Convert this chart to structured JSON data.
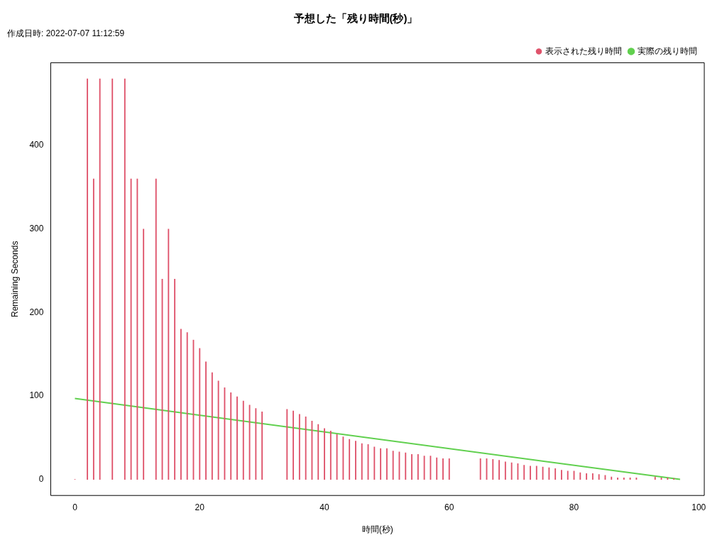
{
  "chart_data": {
    "type": "bar",
    "title": "予想した「残り時間(秒)」",
    "subtitle": "作成日時: 2022-07-07 11:12:59",
    "xlabel": "時間(秒)",
    "ylabel": "Remaining Seconds",
    "xlim": [
      -3.88,
      100.88
    ],
    "xticks": [
      0,
      20,
      40,
      60,
      80,
      100
    ],
    "ylim": [
      -19.2,
      499.2
    ],
    "yticks": [
      0,
      100,
      200,
      300,
      400
    ],
    "legend": "top right",
    "series": [
      {
        "name": "表示された残り時間",
        "color": "#df536b",
        "x": [
          0,
          2,
          3,
          4,
          6,
          8,
          9,
          10,
          11,
          13,
          14,
          15,
          16,
          17,
          18,
          19,
          20,
          21,
          22,
          23,
          24,
          25,
          26,
          27,
          28,
          29,
          30,
          34,
          35,
          36,
          37,
          38,
          39,
          40,
          41,
          42,
          43,
          44,
          45,
          46,
          47,
          48,
          49,
          50,
          51,
          52,
          53,
          54,
          55,
          56,
          57,
          58,
          59,
          60,
          65,
          66,
          67,
          68,
          69,
          70,
          71,
          72,
          73,
          74,
          75,
          76,
          77,
          78,
          79,
          80,
          81,
          82,
          83,
          84,
          85,
          86,
          87,
          88,
          89,
          90,
          93,
          94,
          95,
          96
        ],
        "values": [
          0,
          480,
          360,
          480,
          480,
          480,
          360,
          360,
          300,
          360,
          240,
          300,
          240,
          180,
          176,
          167,
          157,
          141,
          128,
          118,
          110,
          104,
          99,
          94,
          89,
          85,
          81,
          84,
          82,
          78,
          75,
          70,
          66,
          61,
          58,
          54,
          51,
          48,
          46,
          43,
          42,
          39,
          37,
          37,
          34,
          33,
          32,
          30,
          30,
          28,
          28,
          26,
          25,
          25,
          25,
          25,
          24,
          23,
          21,
          20,
          19,
          17,
          16,
          16,
          15,
          14,
          13,
          11,
          10,
          10,
          8,
          7,
          7,
          6,
          5,
          3,
          2,
          2,
          2,
          2,
          3,
          2,
          2,
          1
        ]
      },
      {
        "name": "実際の残り時間",
        "type": "line",
        "color": "#61d04f",
        "x": [
          0,
          97
        ],
        "values": [
          97,
          0
        ]
      }
    ]
  }
}
